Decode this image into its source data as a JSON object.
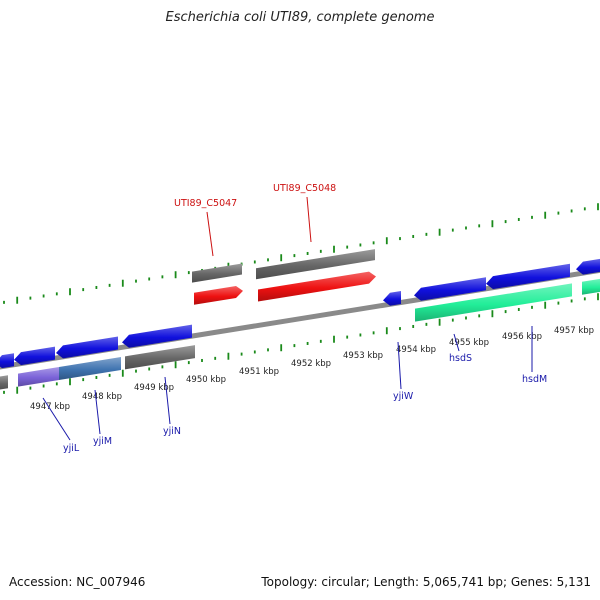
{
  "title": "Escherichia coli UTI89, complete genome",
  "accession": "Accession: NC_007946",
  "summary": "Topology: circular; Length: 5,065,741 bp; Genes: 5,131",
  "colors": {
    "backbone": "#8a8a8a",
    "tick": "#1a8a1a",
    "blue_gene": "#1010dd",
    "grey_gene": "#666666",
    "red_gene": "#ee1111",
    "teal_gene": "#22ee99",
    "purple_gene": "#7a62d8",
    "steel_gene": "#3f73b0",
    "label_blue": "#1a1aaa",
    "label_red": "#cc1111"
  },
  "kbp_labels": [
    "4947 kbp",
    "4948 kbp",
    "4949 kbp",
    "4950 kbp",
    "4951 kbp",
    "4952 kbp",
    "4953 kbp",
    "4954 kbp",
    "4955 kbp",
    "4956 kbp",
    "4957 kbp"
  ],
  "gene_labels": [
    {
      "text": "UTI89_C5047",
      "color": "label_red"
    },
    {
      "text": "UTI89_C5048",
      "color": "label_red"
    },
    {
      "text": "yjiL",
      "color": "label_blue"
    },
    {
      "text": "yjiM",
      "color": "label_blue"
    },
    {
      "text": "yjiN",
      "color": "label_blue"
    },
    {
      "text": "yjiW",
      "color": "label_blue"
    },
    {
      "text": "hsdS",
      "color": "label_blue"
    },
    {
      "text": "hsdM",
      "color": "label_blue"
    }
  ],
  "features": [
    {
      "name": "plus-grey-1",
      "color": "grey_gene"
    },
    {
      "name": "plus-grey-2",
      "color": "grey_gene"
    },
    {
      "name": "plus-red-1",
      "color": "red_gene"
    },
    {
      "name": "plus-red-2",
      "color": "red_gene"
    },
    {
      "name": "minus-blue-1",
      "color": "blue_gene"
    },
    {
      "name": "minus-blue-2",
      "color": "blue_gene"
    },
    {
      "name": "minus-blue-3",
      "color": "blue_gene"
    },
    {
      "name": "minus-blue-4",
      "color": "blue_gene"
    },
    {
      "name": "minus-blue-5",
      "color": "blue_gene"
    },
    {
      "name": "minus-blue-6",
      "color": "blue_gene"
    },
    {
      "name": "minus-blue-7",
      "color": "blue_gene"
    },
    {
      "name": "minus-blue-8",
      "color": "blue_gene"
    },
    {
      "name": "minus-blue-9",
      "color": "blue_gene"
    },
    {
      "name": "minus-grey-1",
      "color": "grey_gene"
    },
    {
      "name": "minus-grey-2",
      "color": "grey_gene"
    },
    {
      "name": "minus-purple-1",
      "color": "purple_gene"
    },
    {
      "name": "minus-steel-1",
      "color": "steel_gene"
    },
    {
      "name": "minus-teal-1",
      "color": "teal_gene"
    },
    {
      "name": "minus-teal-2",
      "color": "teal_gene"
    }
  ]
}
